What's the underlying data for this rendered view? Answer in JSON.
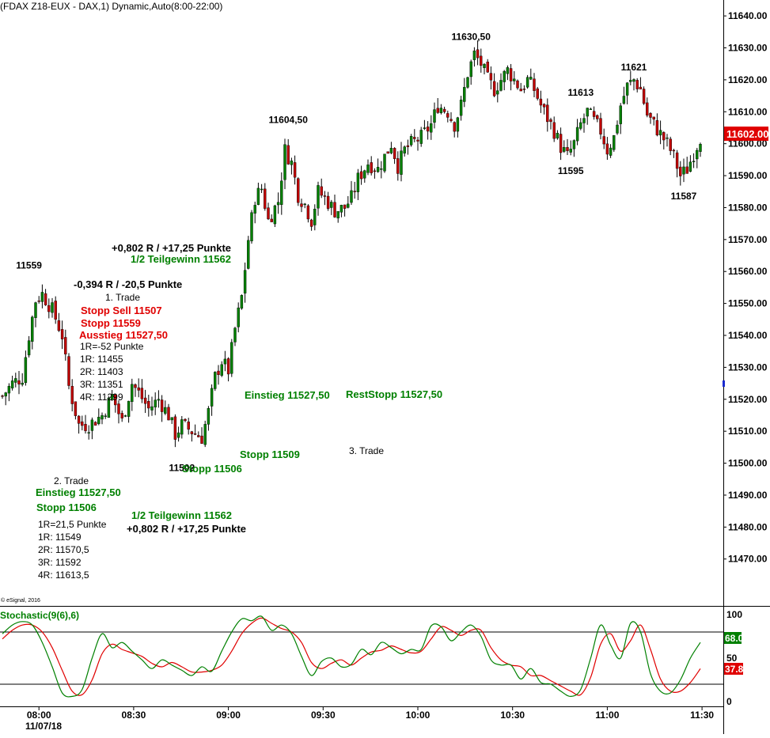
{
  "header": {
    "title": "(FDAX Z18-EUX - DAX,1) Dynamic,Auto(8:00-22:00)",
    "copyright": "© eSignal, 2016"
  },
  "colors": {
    "up": "#008000",
    "down": "#c00000",
    "wick": "#000000",
    "green_text": "#008000",
    "red_text": "#e00000",
    "black_text": "#000000",
    "stoch_k": "#008000",
    "stoch_d": "#e00000",
    "last_price_box": "#e00000",
    "k_box": "#008000",
    "d_box": "#e00000"
  },
  "chart_data": [
    {
      "type": "candlestick",
      "title": "",
      "xlabel": "",
      "ylabel": "",
      "ylim": [
        11463,
        11643
      ],
      "grid": false,
      "y_ticks": [
        "11640.00",
        "11630.00",
        "11620.00",
        "11610.00",
        "11600.00",
        "11590.00",
        "11580.00",
        "11570.00",
        "11560.00",
        "11550.00",
        "11540.00",
        "11530.00",
        "11520.00",
        "11510.00",
        "11500.00",
        "11490.00",
        "11480.00",
        "11470.00"
      ],
      "x_ticks": [
        "08:00",
        "08:30",
        "09:00",
        "09:30",
        "10:00",
        "10:30",
        "11:00",
        "11:30"
      ],
      "date_label": "11/07/18",
      "last_price": "11602.00",
      "close_path": [
        {
          "t": 0,
          "v": 11521
        },
        {
          "t": 3,
          "v": 11525
        },
        {
          "t": 6,
          "v": 11527
        },
        {
          "t": 8,
          "v": 11540
        },
        {
          "t": 10,
          "v": 11551
        },
        {
          "t": 12,
          "v": 11553
        },
        {
          "t": 15,
          "v": 11548
        },
        {
          "t": 18,
          "v": 11540
        },
        {
          "t": 20,
          "v": 11524
        },
        {
          "t": 23,
          "v": 11512
        },
        {
          "t": 26,
          "v": 11512
        },
        {
          "t": 30,
          "v": 11515
        },
        {
          "t": 33,
          "v": 11521
        },
        {
          "t": 36,
          "v": 11513
        },
        {
          "t": 39,
          "v": 11525
        },
        {
          "t": 41,
          "v": 11522
        },
        {
          "t": 44,
          "v": 11517
        },
        {
          "t": 47,
          "v": 11520
        },
        {
          "t": 50,
          "v": 11515
        },
        {
          "t": 52,
          "v": 11509
        },
        {
          "t": 54,
          "v": 11512
        },
        {
          "t": 57,
          "v": 11510
        },
        {
          "t": 60,
          "v": 11508
        },
        {
          "t": 62,
          "v": 11516
        },
        {
          "t": 64,
          "v": 11527
        },
        {
          "t": 66,
          "v": 11532
        },
        {
          "t": 68,
          "v": 11529
        },
        {
          "t": 70,
          "v": 11542
        },
        {
          "t": 72,
          "v": 11552
        },
        {
          "t": 74,
          "v": 11570
        },
        {
          "t": 76,
          "v": 11583
        },
        {
          "t": 78,
          "v": 11586
        },
        {
          "t": 80,
          "v": 11576
        },
        {
          "t": 83,
          "v": 11582
        },
        {
          "t": 85,
          "v": 11598
        },
        {
          "t": 87,
          "v": 11594
        },
        {
          "t": 89,
          "v": 11584
        },
        {
          "t": 91,
          "v": 11581
        },
        {
          "t": 93,
          "v": 11576
        },
        {
          "t": 95,
          "v": 11585
        },
        {
          "t": 97,
          "v": 11583
        },
        {
          "t": 100,
          "v": 11579
        },
        {
          "t": 103,
          "v": 11580
        },
        {
          "t": 105,
          "v": 11583
        },
        {
          "t": 107,
          "v": 11589
        },
        {
          "t": 110,
          "v": 11594
        },
        {
          "t": 113,
          "v": 11592
        },
        {
          "t": 115,
          "v": 11596
        },
        {
          "t": 117,
          "v": 11600
        },
        {
          "t": 119,
          "v": 11593
        },
        {
          "t": 121,
          "v": 11598
        },
        {
          "t": 123,
          "v": 11600
        },
        {
          "t": 126,
          "v": 11602
        },
        {
          "t": 129,
          "v": 11606
        },
        {
          "t": 131,
          "v": 11612
        },
        {
          "t": 134,
          "v": 11610
        },
        {
          "t": 136,
          "v": 11606
        },
        {
          "t": 138,
          "v": 11612
        },
        {
          "t": 140,
          "v": 11622
        },
        {
          "t": 142,
          "v": 11628
        },
        {
          "t": 144,
          "v": 11625
        },
        {
          "t": 146,
          "v": 11620
        },
        {
          "t": 148,
          "v": 11617
        },
        {
          "t": 150,
          "v": 11620
        },
        {
          "t": 152,
          "v": 11623
        },
        {
          "t": 154,
          "v": 11620
        },
        {
          "t": 156,
          "v": 11617
        },
        {
          "t": 158,
          "v": 11620
        },
        {
          "t": 160,
          "v": 11617
        },
        {
          "t": 162,
          "v": 11612
        },
        {
          "t": 164,
          "v": 11608
        },
        {
          "t": 166,
          "v": 11604
        },
        {
          "t": 168,
          "v": 11599
        },
        {
          "t": 170,
          "v": 11596
        },
        {
          "t": 172,
          "v": 11600
        },
        {
          "t": 174,
          "v": 11606
        },
        {
          "t": 176,
          "v": 11610
        },
        {
          "t": 178,
          "v": 11607
        },
        {
          "t": 180,
          "v": 11604
        },
        {
          "t": 182,
          "v": 11598
        },
        {
          "t": 184,
          "v": 11602
        },
        {
          "t": 186,
          "v": 11612
        },
        {
          "t": 188,
          "v": 11618
        },
        {
          "t": 190,
          "v": 11620
        },
        {
          "t": 192,
          "v": 11617
        },
        {
          "t": 194,
          "v": 11609
        },
        {
          "t": 196,
          "v": 11606
        },
        {
          "t": 198,
          "v": 11603
        },
        {
          "t": 200,
          "v": 11600
        },
        {
          "t": 202,
          "v": 11596
        },
        {
          "t": 204,
          "v": 11590
        },
        {
          "t": 206,
          "v": 11592
        },
        {
          "t": 208,
          "v": 11597
        },
        {
          "t": 210,
          "v": 11602
        }
      ],
      "price_labels": [
        {
          "text": "11559",
          "t": 8,
          "v": 11559
        },
        {
          "text": "11502",
          "t": 54,
          "v": 11502
        },
        {
          "text": "11604,50",
          "t": 86,
          "v": 11604.5
        },
        {
          "text": "11630,50",
          "t": 141,
          "v": 11630.5
        },
        {
          "text": "11613",
          "t": 174,
          "v": 11613
        },
        {
          "text": "11595",
          "t": 171,
          "v": 11595
        },
        {
          "text": "11621",
          "t": 190,
          "v": 11621
        },
        {
          "text": "11587",
          "t": 205,
          "v": 11587
        }
      ]
    },
    {
      "type": "line",
      "title": "Stochastic(9(6),6)",
      "ylim": [
        0,
        100
      ],
      "y_ticks": [
        "100",
        "50",
        "0"
      ],
      "levels": [
        20,
        80
      ],
      "k_last": "68.04",
      "d_last": "37.8",
      "series": [
        {
          "key": "k",
          "values": [
            [
              0,
              78
            ],
            [
              3,
              88
            ],
            [
              6,
              92
            ],
            [
              9,
              88
            ],
            [
              12,
              68
            ],
            [
              15,
              40
            ],
            [
              18,
              10
            ],
            [
              21,
              6
            ],
            [
              24,
              14
            ],
            [
              27,
              50
            ],
            [
              30,
              78
            ],
            [
              33,
              62
            ],
            [
              36,
              68
            ],
            [
              39,
              58
            ],
            [
              42,
              48
            ],
            [
              45,
              38
            ],
            [
              48,
              48
            ],
            [
              51,
              42
            ],
            [
              54,
              36
            ],
            [
              57,
              30
            ],
            [
              60,
              40
            ],
            [
              63,
              35
            ],
            [
              66,
              58
            ],
            [
              69,
              80
            ],
            [
              72,
              95
            ],
            [
              75,
              93
            ],
            [
              78,
              98
            ],
            [
              81,
              82
            ],
            [
              84,
              88
            ],
            [
              87,
              78
            ],
            [
              90,
              52
            ],
            [
              93,
              30
            ],
            [
              96,
              46
            ],
            [
              99,
              50
            ],
            [
              102,
              40
            ],
            [
              105,
              43
            ],
            [
              108,
              60
            ],
            [
              111,
              54
            ],
            [
              114,
              68
            ],
            [
              117,
              62
            ],
            [
              120,
              55
            ],
            [
              123,
              60
            ],
            [
              126,
              60
            ],
            [
              129,
              87
            ],
            [
              132,
              86
            ],
            [
              135,
              70
            ],
            [
              138,
              80
            ],
            [
              141,
              88
            ],
            [
              144,
              75
            ],
            [
              147,
              48
            ],
            [
              150,
              42
            ],
            [
              153,
              42
            ],
            [
              156,
              26
            ],
            [
              159,
              38
            ],
            [
              162,
              22
            ],
            [
              165,
              20
            ],
            [
              168,
              12
            ],
            [
              171,
              6
            ],
            [
              174,
              14
            ],
            [
              177,
              50
            ],
            [
              180,
              88
            ],
            [
              183,
              65
            ],
            [
              186,
              50
            ],
            [
              189,
              90
            ],
            [
              192,
              80
            ],
            [
              195,
              32
            ],
            [
              198,
              12
            ],
            [
              201,
              10
            ],
            [
              204,
              25
            ],
            [
              207,
              50
            ],
            [
              210,
              68
            ]
          ]
        },
        {
          "key": "d",
          "values": [
            [
              0,
              72
            ],
            [
              3,
              82
            ],
            [
              6,
              88
            ],
            [
              9,
              88
            ],
            [
              12,
              80
            ],
            [
              15,
              62
            ],
            [
              18,
              36
            ],
            [
              21,
              12
            ],
            [
              24,
              8
            ],
            [
              27,
              25
            ],
            [
              30,
              55
            ],
            [
              33,
              66
            ],
            [
              36,
              60
            ],
            [
              39,
              56
            ],
            [
              42,
              52
            ],
            [
              45,
              44
            ],
            [
              48,
              40
            ],
            [
              51,
              45
            ],
            [
              54,
              40
            ],
            [
              57,
              34
            ],
            [
              60,
              34
            ],
            [
              63,
              36
            ],
            [
              66,
              42
            ],
            [
              69,
              58
            ],
            [
              72,
              78
            ],
            [
              75,
              90
            ],
            [
              78,
              96
            ],
            [
              81,
              90
            ],
            [
              84,
              84
            ],
            [
              87,
              80
            ],
            [
              90,
              68
            ],
            [
              93,
              45
            ],
            [
              96,
              38
            ],
            [
              99,
              44
            ],
            [
              102,
              48
            ],
            [
              105,
              42
            ],
            [
              108,
              50
            ],
            [
              111,
              57
            ],
            [
              114,
              59
            ],
            [
              117,
              64
            ],
            [
              120,
              60
            ],
            [
              123,
              56
            ],
            [
              126,
              58
            ],
            [
              129,
              72
            ],
            [
              132,
              86
            ],
            [
              135,
              82
            ],
            [
              138,
              76
            ],
            [
              141,
              82
            ],
            [
              144,
              82
            ],
            [
              147,
              62
            ],
            [
              150,
              48
            ],
            [
              153,
              42
            ],
            [
              156,
              40
            ],
            [
              159,
              30
            ],
            [
              162,
              30
            ],
            [
              165,
              24
            ],
            [
              168,
              18
            ],
            [
              171,
              12
            ],
            [
              174,
              8
            ],
            [
              177,
              28
            ],
            [
              180,
              66
            ],
            [
              183,
              78
            ],
            [
              186,
              58
            ],
            [
              189,
              70
            ],
            [
              192,
              88
            ],
            [
              195,
              60
            ],
            [
              198,
              26
            ],
            [
              201,
              12
            ],
            [
              204,
              12
            ],
            [
              207,
              22
            ],
            [
              210,
              37.8
            ]
          ]
        }
      ]
    }
  ],
  "annotations": {
    "trade1": {
      "result": "-0,394 R / -20,5 Punkte",
      "name": "1. Trade",
      "stop_sell": "Stopp Sell 11507",
      "stop": "Stopp 11559",
      "exit": "Ausstieg 11527,50",
      "r": "1R=-52 Punkte",
      "r1": "1R: 11455",
      "r2": "2R: 11403",
      "r3": "3R: 11351",
      "r4": "4R: 11299"
    },
    "trade2": {
      "name": "2. Trade",
      "entry": "Einstieg 11527,50",
      "stop": "Stopp 11506",
      "r": "1R=21,5 Punkte",
      "r1": "1R: 11549",
      "r2": "2R: 11570,5",
      "r3": "3R: 11592",
      "r4": "4R: 11613,5",
      "half": "1/2 Teilgewinn 11562",
      "result": "+0,802 R / +17,25 Punkte"
    },
    "trade3": {
      "name": "3. Trade",
      "result": "+0,802 R / +17,25 Punkte",
      "half": "1/2 Teilgewinn 11562",
      "entry": "Einstieg 11527,50",
      "rest_stop": "RestStopp 11527,50",
      "stop1": "Stopp 11509",
      "stop2": "Stopp 11506"
    }
  }
}
